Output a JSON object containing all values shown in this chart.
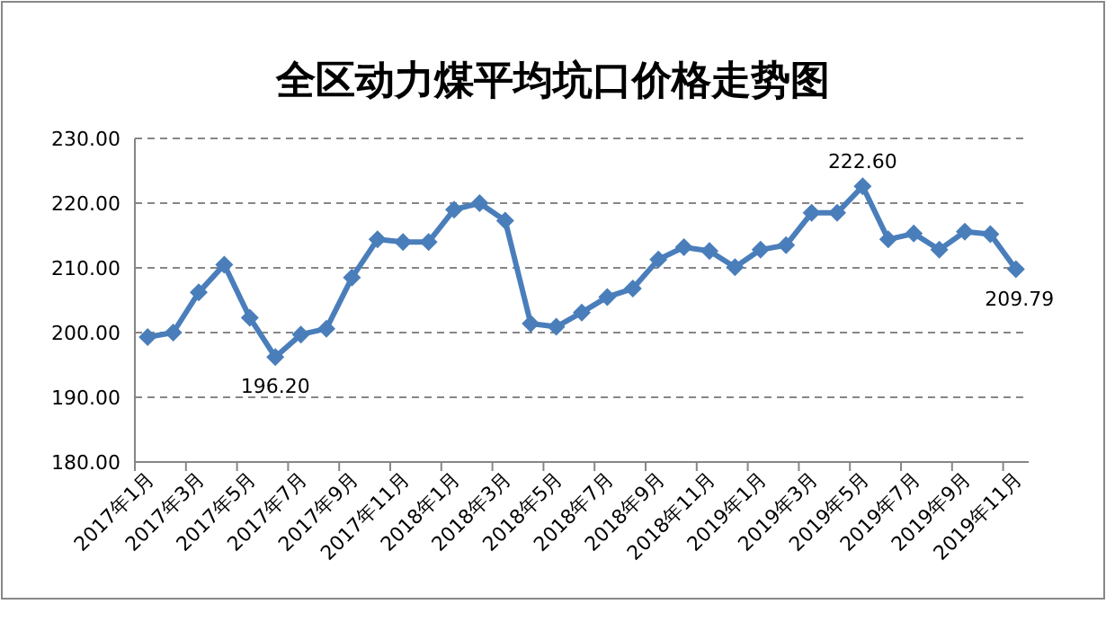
{
  "chart_data": {
    "type": "line",
    "title": "全区动力煤平均坑口价格走势图",
    "categories": [
      "2017年1月",
      null,
      "2017年3月",
      null,
      "2017年5月",
      null,
      "2017年7月",
      null,
      "2017年9月",
      null,
      "2017年11月",
      null,
      "2018年1月",
      null,
      "2018年3月",
      null,
      "2018年5月",
      null,
      "2018年7月",
      null,
      "2018年9月",
      null,
      "2018年11月",
      null,
      "2019年1月",
      null,
      "2019年3月",
      null,
      "2019年5月",
      null,
      "2019年7月",
      null,
      "2019年9月",
      null,
      "2019年11月"
    ],
    "series": [
      {
        "color": "#4a7ebb",
        "values": [
          199.3,
          200.0,
          206.2,
          210.5,
          202.3,
          196.2,
          199.7,
          200.6,
          208.5,
          214.4,
          214.0,
          214.0,
          219.0,
          220.0,
          217.3,
          201.4,
          200.9,
          203.1,
          205.5,
          206.8,
          211.3,
          213.2,
          212.6,
          210.1,
          212.8,
          213.5,
          218.5,
          218.5,
          222.6,
          214.4,
          215.3,
          212.8,
          215.6,
          215.2,
          209.79
        ],
        "value_labels": [
          null,
          null,
          null,
          null,
          null,
          "196.20",
          null,
          null,
          null,
          null,
          null,
          null,
          null,
          null,
          null,
          null,
          null,
          null,
          null,
          null,
          null,
          null,
          null,
          null,
          null,
          null,
          null,
          null,
          "222.60",
          null,
          null,
          null,
          null,
          null,
          "209.79"
        ]
      }
    ],
    "ylim": [
      180,
      230
    ],
    "yticks": [
      {
        "value": 180,
        "label": "180.00"
      },
      {
        "value": 190,
        "label": "190.00"
      },
      {
        "value": 200,
        "label": "200.00"
      },
      {
        "value": 210,
        "label": "210.00"
      },
      {
        "value": 220,
        "label": "220.00"
      },
      {
        "value": 230,
        "label": "230.00"
      }
    ],
    "grid": "y",
    "marker": "diamond",
    "line_style": "solid"
  }
}
